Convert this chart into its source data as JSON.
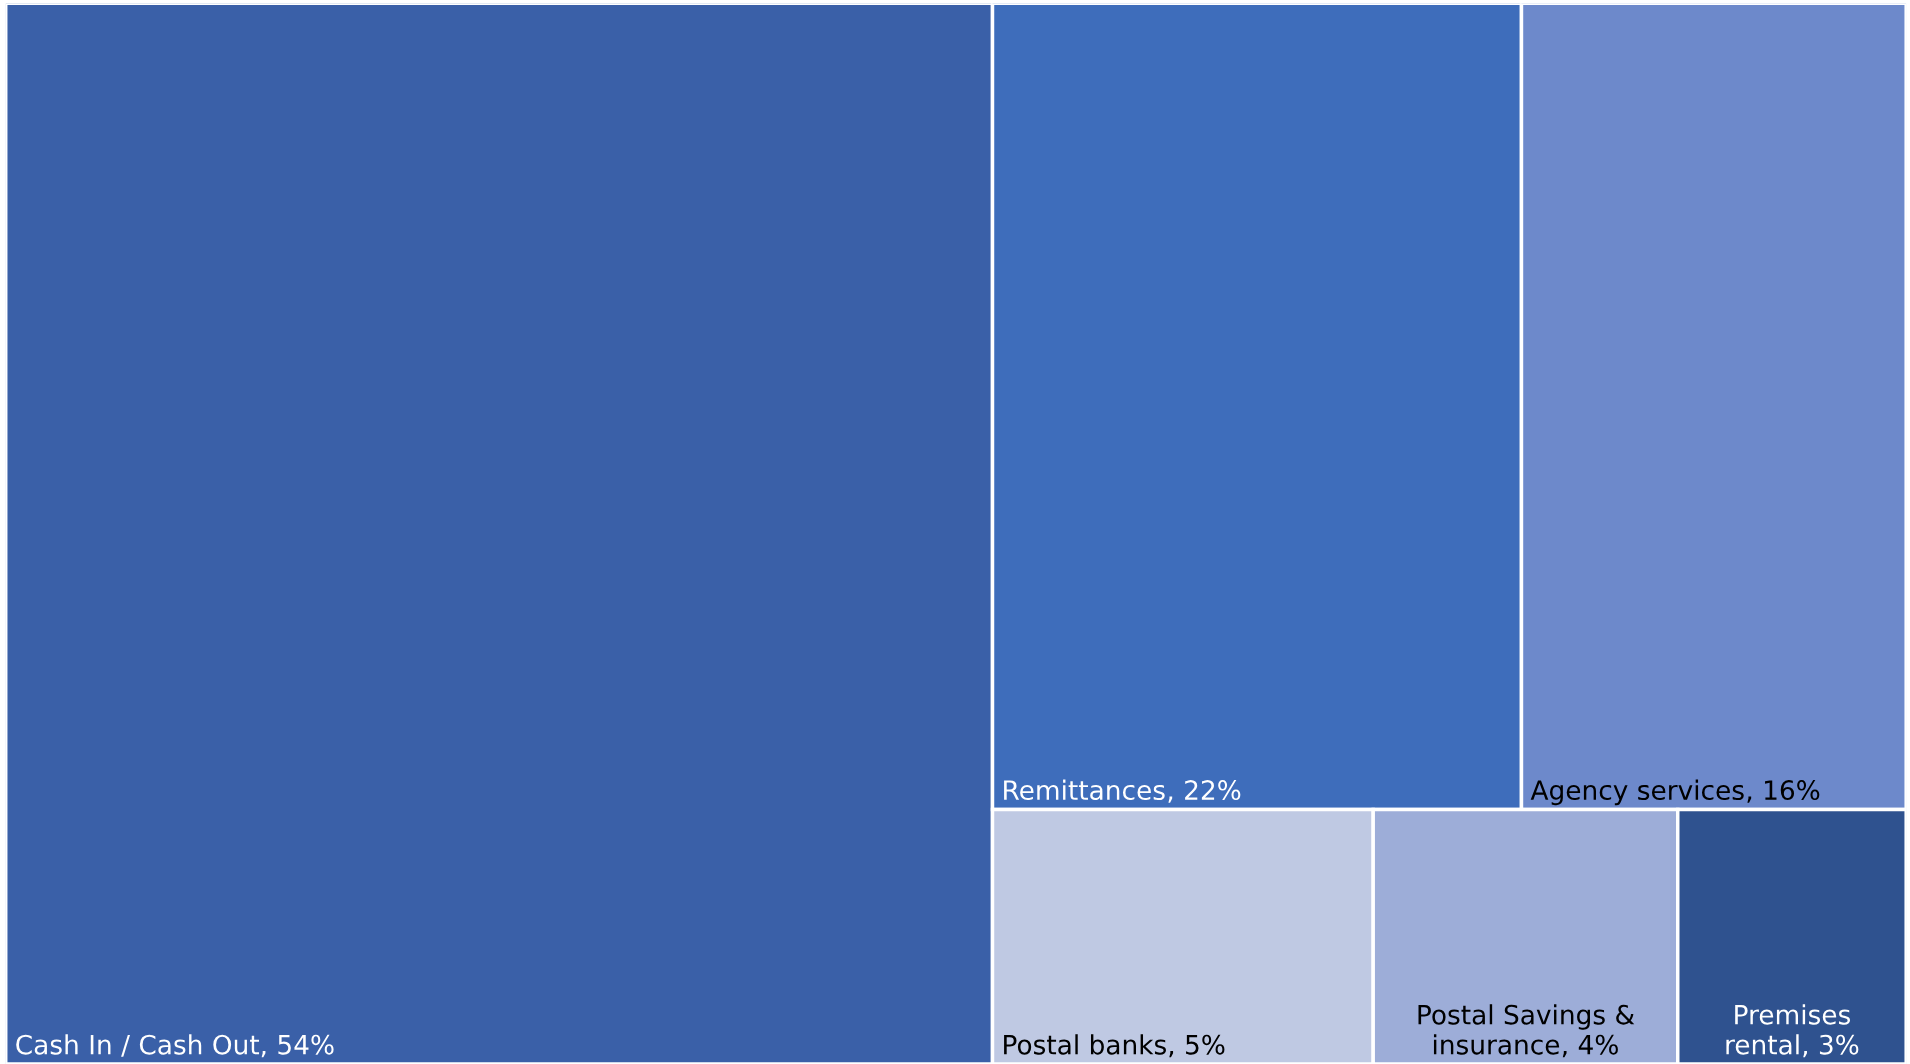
{
  "chart_data": {
    "type": "other",
    "categories": [
      "Cash In / Cash Out",
      "Remittances",
      "Agency services",
      "Postal banks",
      "Postal Savings & insurance",
      "Premises rental"
    ],
    "values": [
      54,
      22,
      16,
      5,
      4,
      3
    ],
    "value_labels": [
      ", 54%",
      ", 22%",
      ", 16%",
      ", 5%",
      ", 4%",
      ", 3%"
    ],
    "colors": [
      "#3a60a8",
      "#3e6dbb",
      "#6d89cb",
      "#bfc9e3",
      "#9dadd8",
      "#2f528f"
    ]
  }
}
